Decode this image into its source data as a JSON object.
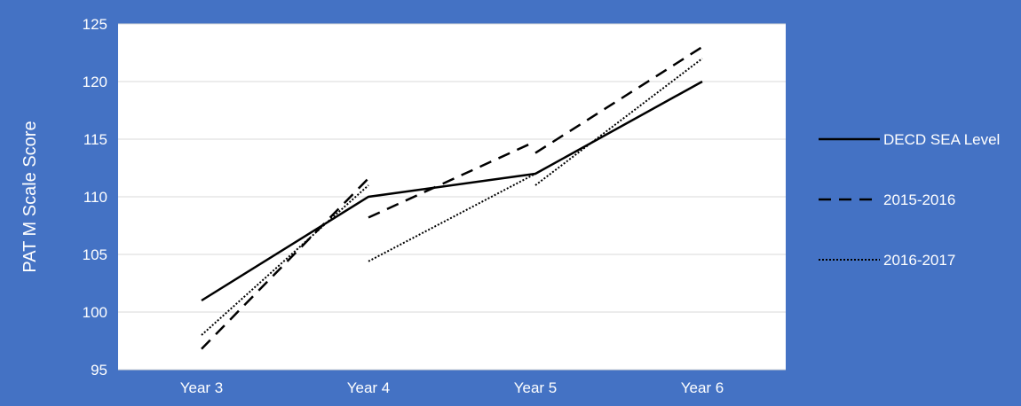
{
  "colors": {
    "background": "#4472c4",
    "plot_area": "#ffffff",
    "gridline": "#d9d9d9",
    "series_line": "#000000",
    "text": "#ffffff"
  },
  "chart_data": {
    "type": "line",
    "title": "",
    "xlabel": "",
    "ylabel": "PAT M Scale Score",
    "ylim": [
      95,
      125
    ],
    "yticks": [
      95,
      100,
      105,
      110,
      115,
      120,
      125
    ],
    "grid": true,
    "legend": "right",
    "categories": [
      "Year 3",
      "Year 4",
      "Year 5",
      "Year 6"
    ],
    "series": [
      {
        "name": "DECD SEA Level",
        "style": "solid",
        "segments": [
          [
            [
              "Year 3",
              101
            ],
            [
              "Year 4",
              110
            ],
            [
              "Year 5",
              112
            ],
            [
              "Year 6",
              120
            ]
          ]
        ]
      },
      {
        "name": "2015-2016",
        "style": "dashed",
        "segments": [
          [
            [
              "Year 3",
              96.8
            ],
            [
              "Year 4",
              111.6
            ]
          ],
          [
            [
              "Year 4",
              108.2
            ],
            [
              "Year 5",
              114.8
            ]
          ],
          [
            [
              "Year 5",
              113.8
            ],
            [
              "Year 6",
              123
            ]
          ]
        ]
      },
      {
        "name": "2016-2017",
        "style": "dotted",
        "segments": [
          [
            [
              "Year 3",
              98
            ],
            [
              "Year 4",
              111
            ]
          ],
          [
            [
              "Year 4",
              104.4
            ],
            [
              "Year 5",
              112
            ]
          ],
          [
            [
              "Year 5",
              111
            ],
            [
              "Year 6",
              122
            ]
          ]
        ]
      }
    ]
  }
}
